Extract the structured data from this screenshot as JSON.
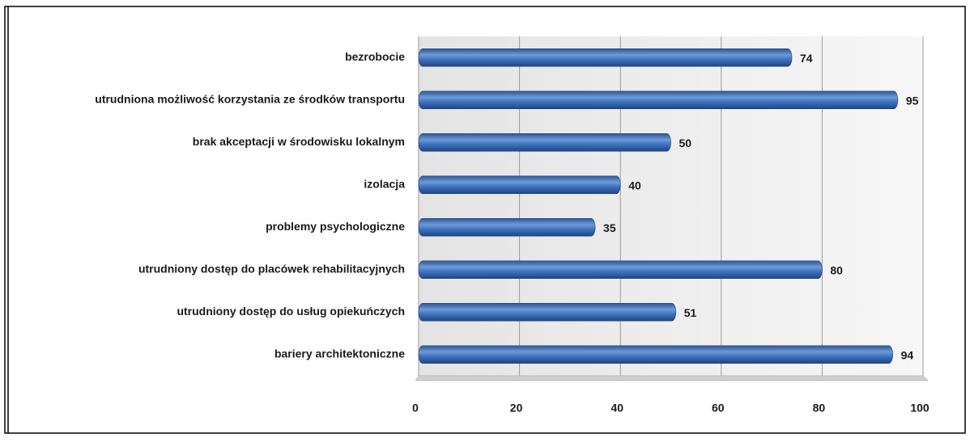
{
  "chart_data": {
    "type": "bar",
    "orientation": "horizontal",
    "categories": [
      "bezrobocie",
      "utrudniona możliwość korzystania ze środków transportu",
      "brak akceptacji w środowisku lokalnym",
      "izolacja",
      "problemy psychologiczne",
      "utrudniony dostęp do placówek rehabilitacyjnych",
      "utrudniony dostęp do usług opiekuńczych",
      "bariery architektoniczne"
    ],
    "values": [
      74,
      95,
      50,
      40,
      35,
      80,
      51,
      94
    ],
    "color": "#3f74c0",
    "xlim": [
      0,
      100
    ],
    "xticks": [
      0,
      20,
      40,
      60,
      80,
      100
    ],
    "grid": true
  }
}
